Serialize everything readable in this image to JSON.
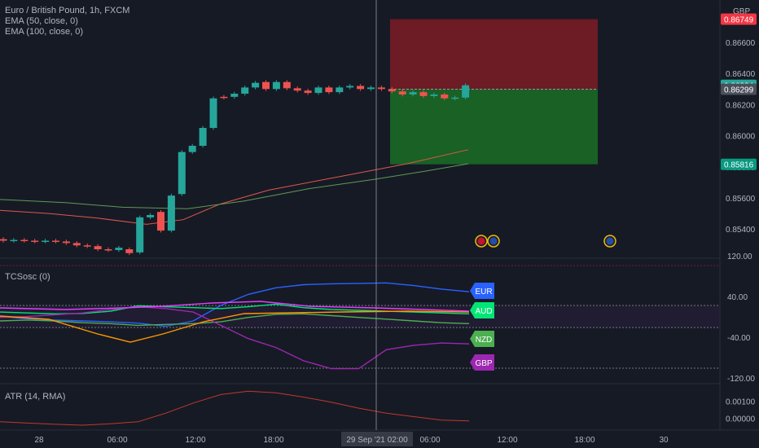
{
  "header": {
    "symbol_title": "Euro / British Pound, 1h, FXCM",
    "currency": "GBP",
    "indicators": [
      "EMA (50, close, 0)",
      "EMA (100, close, 0)"
    ]
  },
  "colors": {
    "background": "#161a25",
    "up_candle": "#26a69a",
    "down_candle": "#ef5350",
    "ema50": "#e0574a",
    "ema100": "#5f9a55",
    "stop_zone": "#8b1c24",
    "target_zone": "#1b7a26",
    "crosshair": "#9598a1",
    "EUR": "#2962ff",
    "AUD": "#00e676",
    "NZD": "#4caf50",
    "GBP": "#9c27b0"
  },
  "main_panel": {
    "price_axis_ticks": [
      "0.86600",
      "0.86400",
      "0.86200",
      "0.86000",
      "0.85800",
      "0.85600",
      "0.85400"
    ],
    "price_badges": [
      {
        "text": "0.86749",
        "bg": "#f23645"
      },
      {
        "text": "0.86324",
        "bg": "#26a69a"
      },
      {
        "text": "0.86299",
        "bg": "#4a4f5a"
      },
      {
        "text": "0.85816",
        "bg": "#089981"
      }
    ],
    "event_icons": [
      "gb-flag-icon",
      "eu-flag-icon",
      "eu-flag-icon"
    ]
  },
  "osc_panel": {
    "title": "TCSosc (0)",
    "axis_ticks": [
      "120.00",
      "40.00",
      "-40.00",
      "-120.00"
    ],
    "currency_labels": [
      {
        "text": "EUR",
        "bg": "#2962ff"
      },
      {
        "text": "AUD",
        "bg": "#00e676"
      },
      {
        "text": "NZD",
        "bg": "#4caf50"
      },
      {
        "text": "GBP",
        "bg": "#9c27b0"
      }
    ]
  },
  "atr_panel": {
    "title": "ATR (14, RMA)",
    "axis_ticks": [
      "0.00100",
      "0.00000"
    ]
  },
  "time_axis": {
    "labels": [
      "28",
      "06:00",
      "12:00",
      "18:00",
      "06:00",
      "12:00",
      "18:00",
      "30"
    ],
    "crosshair_label": "29 Sep '21   02:00"
  },
  "chart_data": [
    {
      "type": "candlestick",
      "title": "Euro / British Pound, 1h, FXCM",
      "ylim": [
        0.8527,
        0.8682
      ],
      "series": [
        {
          "name": "EMA (50, close, 0)",
          "values_note": "rising line 0.8552 → 0.8591"
        },
        {
          "name": "EMA (100, close, 0)",
          "values_note": "rising line 0.8559 → 0.8582"
        }
      ],
      "candles": [
        {
          "o": 0.85335,
          "c": 0.85325
        },
        {
          "o": 0.85325,
          "c": 0.8533
        },
        {
          "o": 0.8533,
          "c": 0.85325
        },
        {
          "o": 0.85325,
          "c": 0.8532
        },
        {
          "o": 0.8532,
          "c": 0.85325
        },
        {
          "o": 0.85325,
          "c": 0.8532
        },
        {
          "o": 0.8532,
          "c": 0.8531
        },
        {
          "o": 0.8531,
          "c": 0.85295
        },
        {
          "o": 0.85295,
          "c": 0.8529
        },
        {
          "o": 0.8529,
          "c": 0.8527
        },
        {
          "o": 0.8527,
          "c": 0.85265
        },
        {
          "o": 0.85265,
          "c": 0.8528
        },
        {
          "o": 0.8527,
          "c": 0.85245
        },
        {
          "o": 0.8525,
          "c": 0.85475
        },
        {
          "o": 0.85475,
          "c": 0.8549
        },
        {
          "o": 0.8551,
          "c": 0.8539
        },
        {
          "o": 0.8539,
          "c": 0.85615
        },
        {
          "o": 0.85625,
          "c": 0.85895
        },
        {
          "o": 0.85895,
          "c": 0.85935
        },
        {
          "o": 0.85935,
          "c": 0.8605
        },
        {
          "o": 0.8605,
          "c": 0.8624
        },
        {
          "o": 0.8625,
          "c": 0.86245
        },
        {
          "o": 0.8625,
          "c": 0.8627
        },
        {
          "o": 0.8627,
          "c": 0.8631
        },
        {
          "o": 0.8631,
          "c": 0.8634
        },
        {
          "o": 0.86345,
          "c": 0.863
        },
        {
          "o": 0.863,
          "c": 0.86345
        },
        {
          "o": 0.86345,
          "c": 0.86305
        },
        {
          "o": 0.86305,
          "c": 0.8629
        },
        {
          "o": 0.8629,
          "c": 0.86275
        },
        {
          "o": 0.86275,
          "c": 0.8631
        },
        {
          "o": 0.8631,
          "c": 0.8628
        },
        {
          "o": 0.8628,
          "c": 0.8631
        },
        {
          "o": 0.8631,
          "c": 0.8632
        },
        {
          "o": 0.8632,
          "c": 0.863
        },
        {
          "o": 0.863,
          "c": 0.8631
        },
        {
          "o": 0.8631,
          "c": 0.863
        },
        {
          "o": 0.863,
          "c": 0.86285
        },
        {
          "o": 0.86285,
          "c": 0.86265
        },
        {
          "o": 0.86265,
          "c": 0.8628
        },
        {
          "o": 0.8628,
          "c": 0.86255
        },
        {
          "o": 0.86255,
          "c": 0.86265
        },
        {
          "o": 0.86265,
          "c": 0.8624
        },
        {
          "o": 0.8624,
          "c": 0.86245
        },
        {
          "o": 0.86245,
          "c": 0.86324
        }
      ],
      "position": {
        "entry": 0.86299,
        "stop": 0.86749,
        "target": 0.85816
      }
    },
    {
      "type": "line",
      "title": "TCSosc (0)",
      "ylim": [
        -150,
        130
      ],
      "series": [
        {
          "name": "EUR",
          "values": [
            0,
            -5,
            -8,
            -10,
            -12,
            -15,
            -22,
            -10,
            25,
            50,
            65,
            72,
            74,
            75,
            76,
            70,
            62,
            56
          ]
        },
        {
          "name": "AUD",
          "values": [
            10,
            8,
            6,
            7,
            12,
            24,
            22,
            20,
            18,
            22,
            28,
            20,
            16,
            14,
            12,
            10,
            8,
            6
          ]
        },
        {
          "name": "NZD",
          "values": [
            -10,
            -8,
            -10,
            -14,
            -16,
            -20,
            -18,
            -16,
            -12,
            -2,
            5,
            6,
            2,
            -2,
            -6,
            -10,
            -14,
            -16
          ]
        },
        {
          "name": "GBP",
          "values": [
            -2,
            0,
            4,
            8,
            16,
            22,
            18,
            10,
            -20,
            -50,
            -70,
            -100,
            -118,
            -118,
            -75,
            -65,
            -60,
            -62
          ]
        }
      ]
    },
    {
      "type": "line",
      "title": "ATR (14, RMA)",
      "ylim": [
        -0.00045,
        0.0018
      ],
      "series": [
        {
          "name": "ATR (14, RMA)",
          "values": [
            -0.0002,
            -0.00028,
            -0.00035,
            -0.0004,
            -0.00032,
            -0.0002,
            0.0003,
            0.0009,
            0.0014,
            0.0016,
            0.0015,
            0.00125,
            0.00095,
            0.0006,
            0.0003,
            0.0001,
            -0.0001,
            -0.00015
          ]
        }
      ]
    }
  ]
}
